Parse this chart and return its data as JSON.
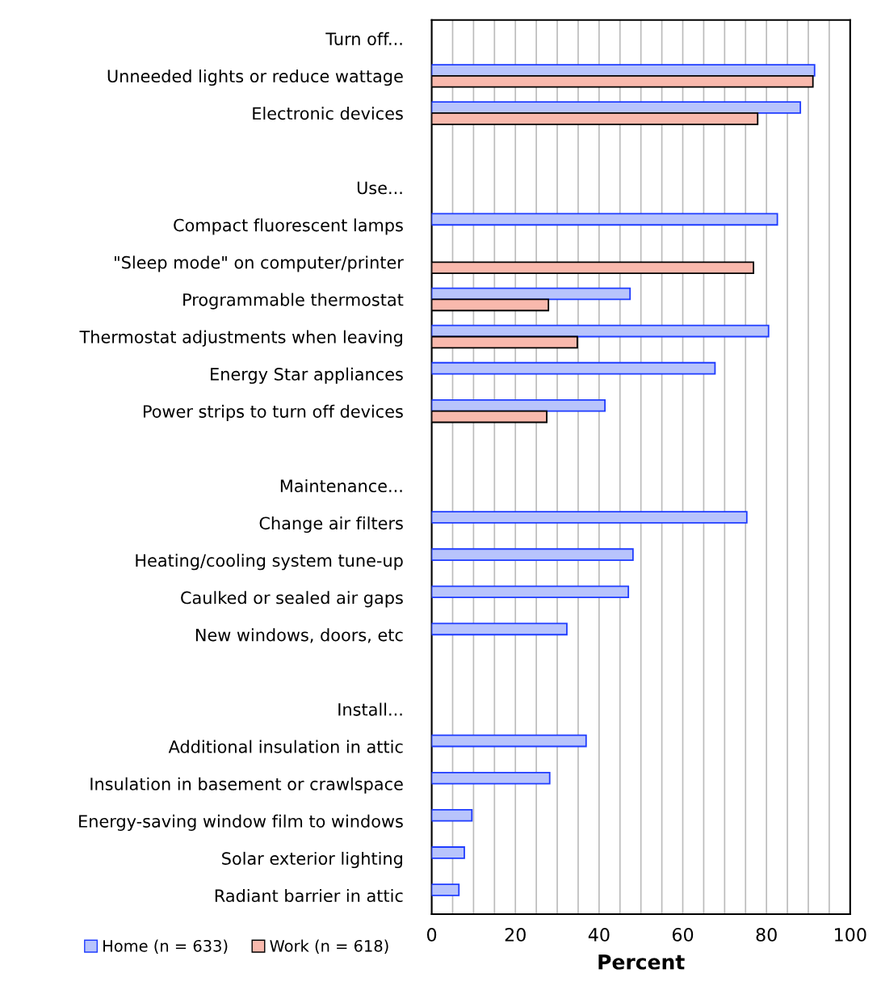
{
  "chart_data": {
    "type": "bar",
    "orientation": "horizontal",
    "xlabel": "Percent",
    "categories": [
      "Turn off...",
      "Unneeded lights or reduce wattage",
      "Electronic devices",
      null,
      "Use...",
      "Compact fluorescent lamps",
      "\"Sleep mode\" on computer/printer",
      "Programmable thermostat",
      "Thermostat adjustments when leaving",
      "Energy Star appliances",
      "Power strips to turn off devices",
      null,
      "Maintenance...",
      "Change air filters",
      "Heating/cooling system tune-up",
      "Caulked or sealed air gaps",
      "New windows, doors, etc",
      null,
      "Install...",
      "Additional insulation in attic",
      "Insulation in basement or crawlspace",
      "Energy-saving window film to windows",
      "Solar exterior lighting",
      "Radiant barrier in attic"
    ],
    "series": [
      {
        "name": "Home (n = 633)",
        "color": "#b8c4fc",
        "values": [
          null,
          91.5,
          88.1,
          null,
          null,
          82.6,
          null,
          47.4,
          80.5,
          67.7,
          41.4,
          null,
          null,
          75.3,
          48.1,
          47.0,
          32.3,
          null,
          null,
          36.9,
          28.2,
          9.6,
          7.8,
          6.5
        ]
      },
      {
        "name": "Work (n = 618)",
        "color": "#f9b9ad",
        "values": [
          null,
          91.1,
          77.9,
          null,
          null,
          null,
          76.9,
          27.9,
          34.8,
          null,
          27.5,
          null,
          null,
          null,
          null,
          null,
          null,
          null,
          null,
          null,
          null,
          null,
          null,
          null
        ]
      }
    ],
    "xlim": [
      0,
      100
    ],
    "xticks": [
      0,
      {
        "value": 5,
        "label": null
      },
      {
        "value": 10,
        "label": null
      },
      {
        "value": 15,
        "label": null
      },
      20,
      {
        "value": 25,
        "label": null
      },
      {
        "value": 30,
        "label": null
      },
      {
        "value": 35,
        "label": null
      },
      40,
      {
        "value": 45,
        "label": null
      },
      {
        "value": 50,
        "label": null
      },
      {
        "value": 55,
        "label": null
      },
      60,
      {
        "value": 65,
        "label": null
      },
      {
        "value": 70,
        "label": null
      },
      {
        "value": 75,
        "label": null
      },
      80,
      {
        "value": 85,
        "label": null
      },
      {
        "value": 90,
        "label": null
      },
      {
        "value": 95,
        "label": null
      },
      100
    ],
    "grid": "x",
    "legend": "bottom left"
  }
}
